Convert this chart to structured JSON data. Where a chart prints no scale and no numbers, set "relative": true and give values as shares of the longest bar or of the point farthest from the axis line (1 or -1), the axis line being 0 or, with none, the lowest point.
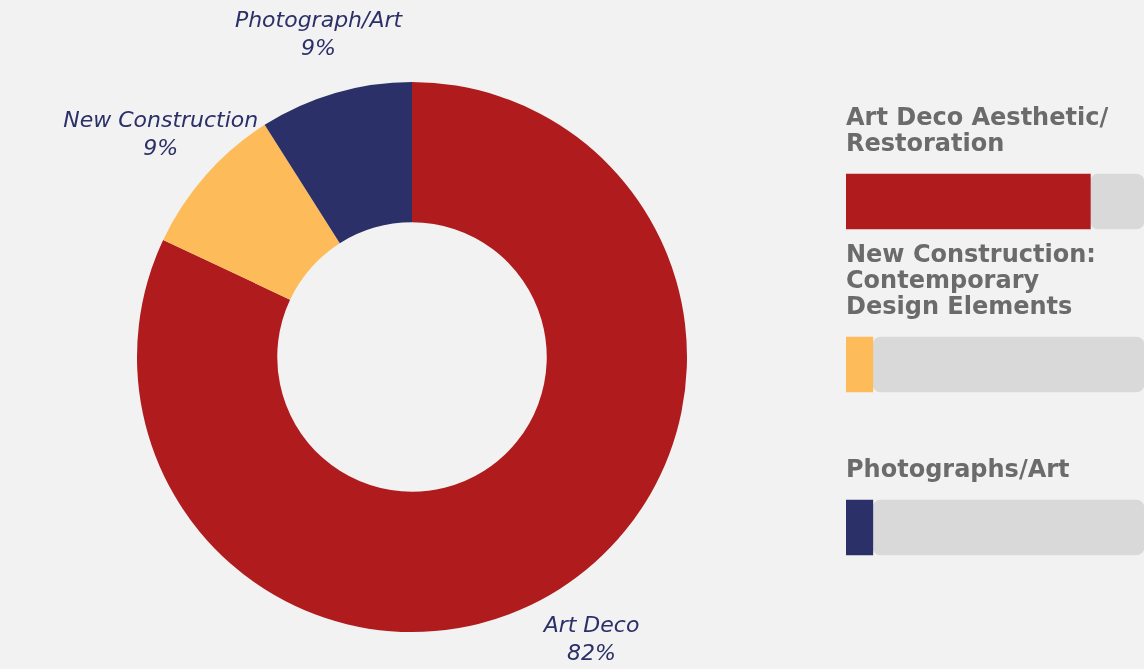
{
  "chart_data": [
    {
      "type": "donut",
      "categories": [
        "Art Deco",
        "New Construction",
        "Photograph/Art"
      ],
      "values": [
        82,
        9,
        9
      ],
      "colors": [
        "#b01c1e",
        "#fdbb5a",
        "#2b3068"
      ],
      "value_labels": [
        "82%",
        "9%",
        "9%"
      ],
      "legend": false
    },
    {
      "type": "bar",
      "orientation": "horizontal",
      "stacked": true,
      "relative": true,
      "legend": false,
      "categories": [
        "Art Deco Aesthetic/Restoration",
        "New Construction: Contemporary Design Elements",
        "Photographs/Art"
      ],
      "series": [
        {
          "colors": [
            "#b01c1e",
            "#fdbb5a",
            "#2b3068"
          ],
          "values": [
            0.82,
            0.09,
            0.09
          ]
        },
        {
          "color": "#d9d9d9",
          "values": [
            0.18,
            0.91,
            0.91
          ]
        }
      ]
    }
  ]
}
